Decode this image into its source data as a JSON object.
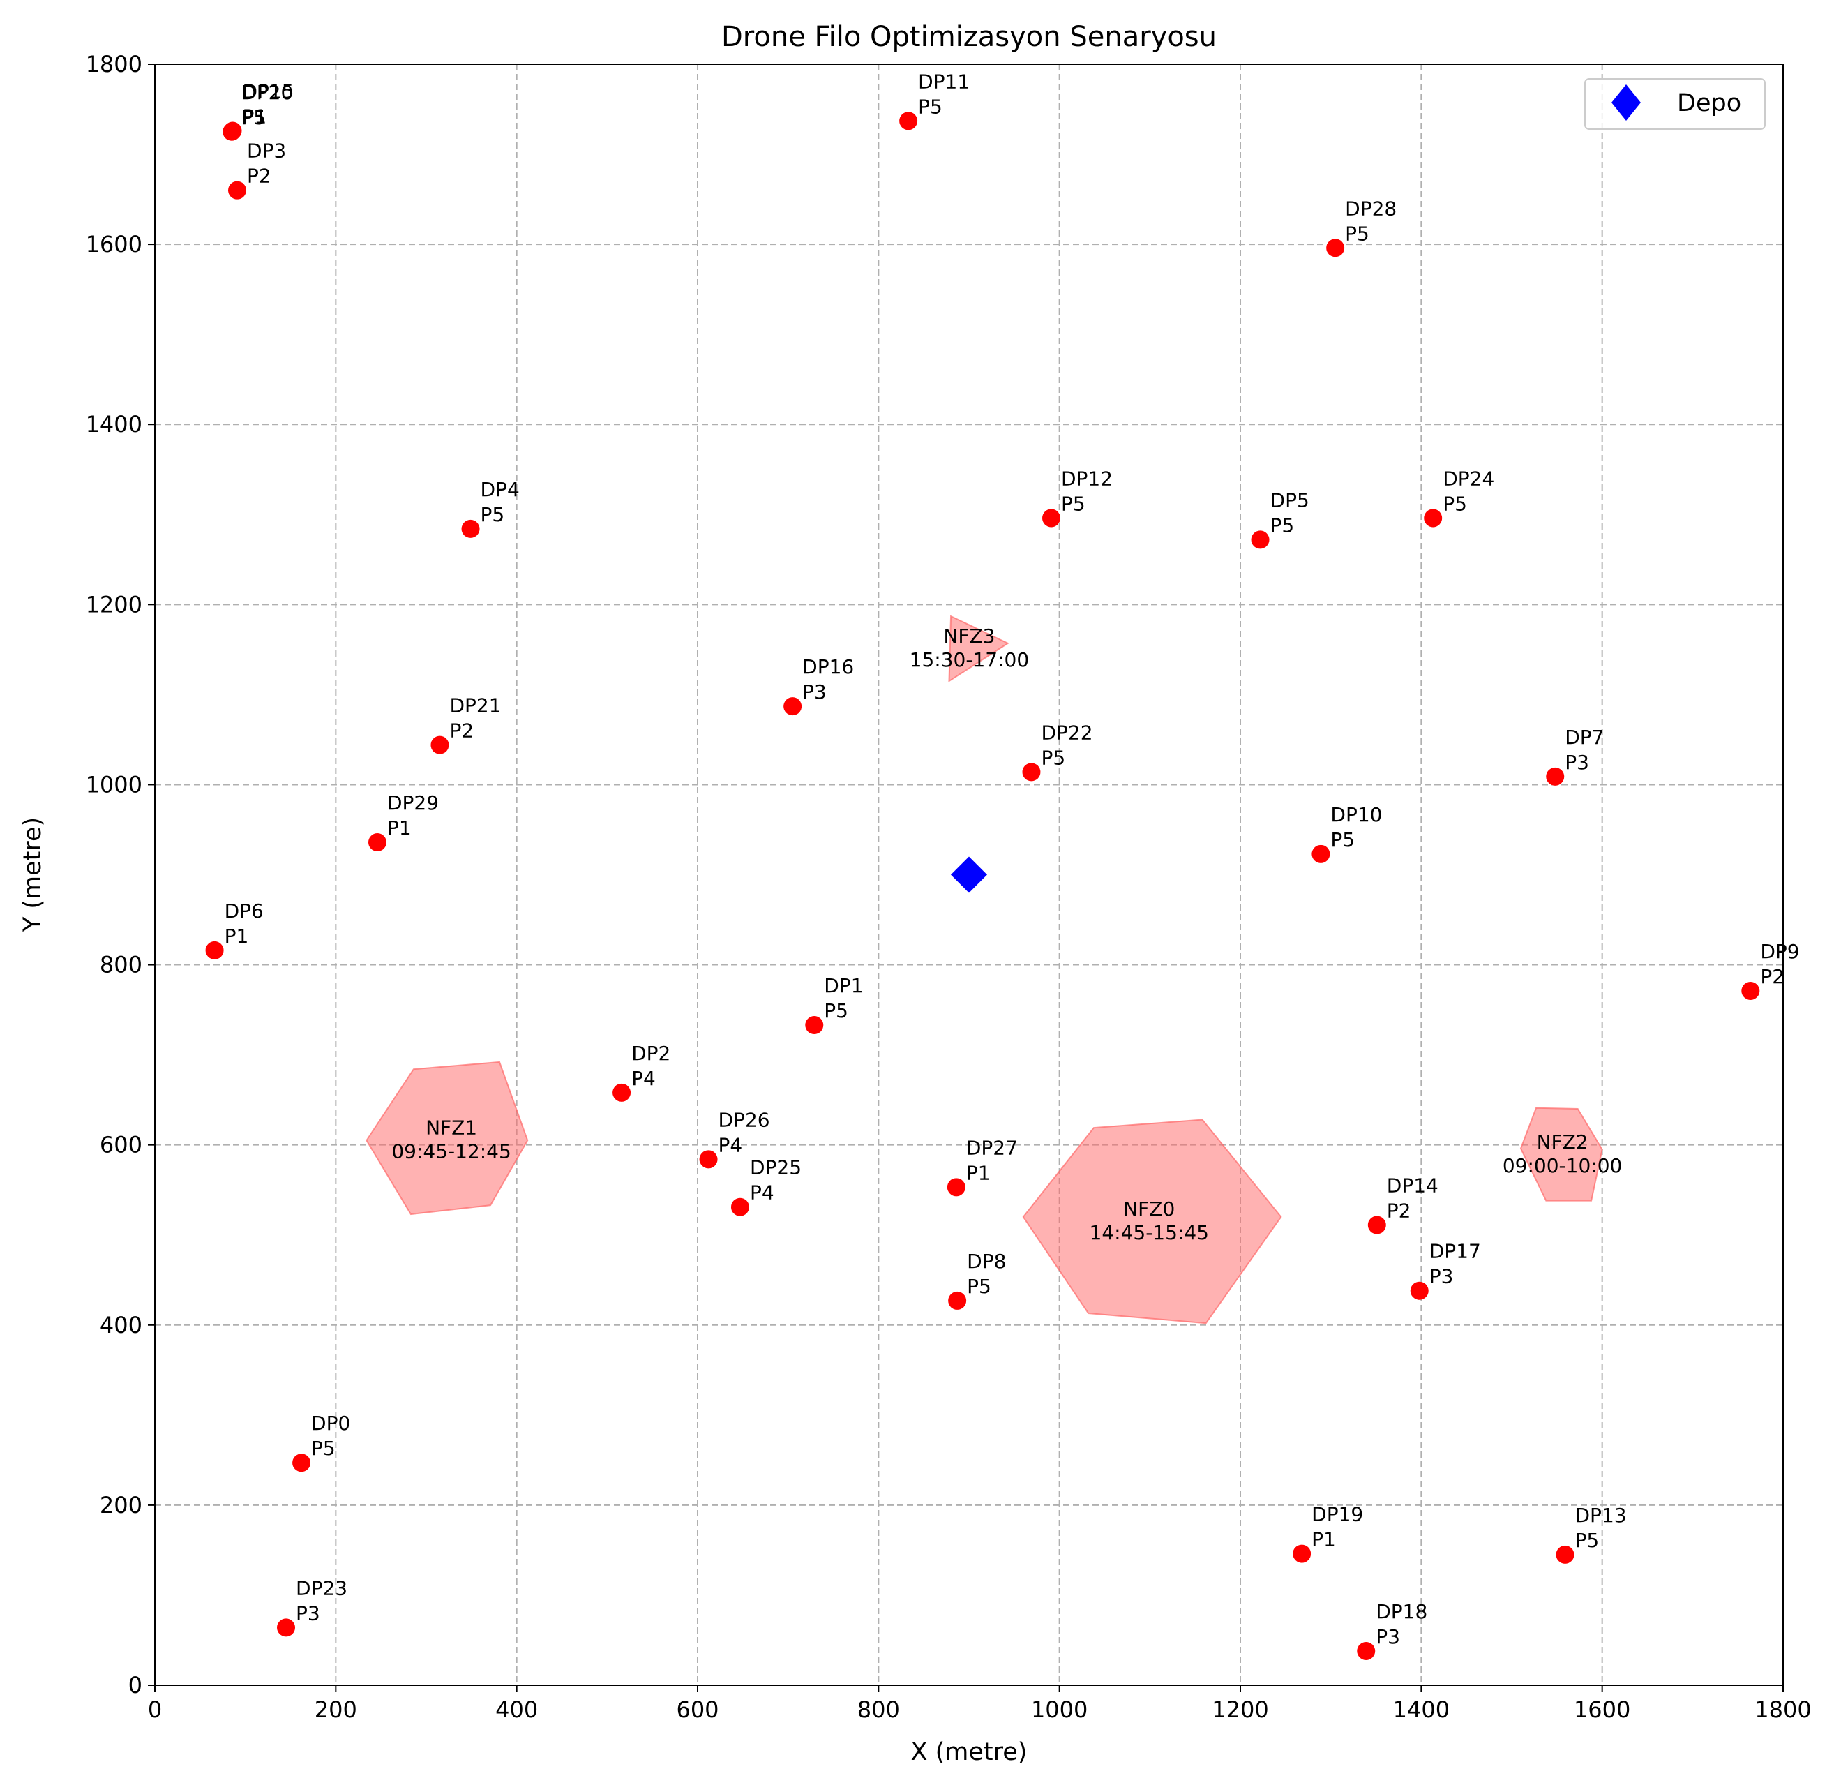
{
  "chart_data": {
    "type": "scatter",
    "title": "Drone Filo Optimizasyon Senaryosu",
    "xlabel": "X (metre)",
    "ylabel": "Y (metre)",
    "xlim": [
      0,
      1800
    ],
    "ylim": [
      0,
      1800
    ],
    "xticks": [
      0,
      200,
      400,
      600,
      800,
      1000,
      1200,
      1400,
      1600,
      1800
    ],
    "yticks": [
      0,
      200,
      400,
      600,
      800,
      1000,
      1200,
      1400,
      1600,
      1800
    ],
    "grid": true,
    "legend_position": "top-right",
    "depot": {
      "name": "Depo",
      "x": 900,
      "y": 900,
      "color": "#0000ff"
    },
    "delivery_point_color": "#ff0000",
    "nfz_color": "#ff6666",
    "delivery_points": [
      {
        "id": "DP0",
        "priority": "P5",
        "x": 162,
        "y": 247
      },
      {
        "id": "DP1",
        "priority": "P5",
        "x": 729,
        "y": 733
      },
      {
        "id": "DP2",
        "priority": "P4",
        "x": 516,
        "y": 658
      },
      {
        "id": "DP3",
        "priority": "P2",
        "x": 91,
        "y": 1660
      },
      {
        "id": "DP4",
        "priority": "P5",
        "x": 349,
        "y": 1284
      },
      {
        "id": "DP5",
        "priority": "P5",
        "x": 1222,
        "y": 1272
      },
      {
        "id": "DP6",
        "priority": "P1",
        "x": 66,
        "y": 816
      },
      {
        "id": "DP7",
        "priority": "P3",
        "x": 1548,
        "y": 1009
      },
      {
        "id": "DP8",
        "priority": "P5",
        "x": 887,
        "y": 427
      },
      {
        "id": "DP9",
        "priority": "P2",
        "x": 1764,
        "y": 771
      },
      {
        "id": "DP10",
        "priority": "P5",
        "x": 1289,
        "y": 923
      },
      {
        "id": "DP11",
        "priority": "P5",
        "x": 833,
        "y": 1737
      },
      {
        "id": "DP12",
        "priority": "P5",
        "x": 991,
        "y": 1296
      },
      {
        "id": "DP13",
        "priority": "P5",
        "x": 1559,
        "y": 145
      },
      {
        "id": "DP14",
        "priority": "P2",
        "x": 1351,
        "y": 511
      },
      {
        "id": "DP15",
        "priority": "P1",
        "x": 86,
        "y": 1726
      },
      {
        "id": "DP16",
        "priority": "P3",
        "x": 705,
        "y": 1087
      },
      {
        "id": "DP17",
        "priority": "P3",
        "x": 1398,
        "y": 438
      },
      {
        "id": "DP18",
        "priority": "P3",
        "x": 1339,
        "y": 38
      },
      {
        "id": "DP19",
        "priority": "P1",
        "x": 1268,
        "y": 146
      },
      {
        "id": "DP20",
        "priority": "P5",
        "x": 85,
        "y": 1725
      },
      {
        "id": "DP21",
        "priority": "P2",
        "x": 315,
        "y": 1044
      },
      {
        "id": "DP22",
        "priority": "P5",
        "x": 969,
        "y": 1014
      },
      {
        "id": "DP23",
        "priority": "P3",
        "x": 145,
        "y": 64
      },
      {
        "id": "DP24",
        "priority": "P5",
        "x": 1413,
        "y": 1296
      },
      {
        "id": "DP25",
        "priority": "P4",
        "x": 647,
        "y": 531
      },
      {
        "id": "DP26",
        "priority": "P4",
        "x": 612,
        "y": 584
      },
      {
        "id": "DP27",
        "priority": "P1",
        "x": 886,
        "y": 553
      },
      {
        "id": "DP28",
        "priority": "P5",
        "x": 1305,
        "y": 1596
      },
      {
        "id": "DP29",
        "priority": "P1",
        "x": 246,
        "y": 936
      }
    ],
    "no_fly_zones": [
      {
        "id": "NFZ0",
        "window": "14:45-15:45",
        "polygon": [
          [
            1038,
            619
          ],
          [
            1158,
            628
          ],
          [
            1245,
            520
          ],
          [
            1162,
            402
          ],
          [
            1032,
            413
          ],
          [
            960,
            520
          ]
        ]
      },
      {
        "id": "NFZ1",
        "window": "09:45-12:45",
        "polygon": [
          [
            286,
            684
          ],
          [
            381,
            692
          ],
          [
            412,
            605
          ],
          [
            371,
            533
          ],
          [
            283,
            523
          ],
          [
            234,
            605
          ]
        ]
      },
      {
        "id": "NFZ2",
        "window": "09:00-10:00",
        "polygon": [
          [
            1527,
            641
          ],
          [
            1573,
            640
          ],
          [
            1600,
            595
          ],
          [
            1588,
            538
          ],
          [
            1538,
            538
          ],
          [
            1510,
            596
          ]
        ]
      },
      {
        "id": "NFZ3",
        "window": "15:30-17:00",
        "polygon": [
          [
            880,
            1187
          ],
          [
            943,
            1157
          ],
          [
            878,
            1115
          ]
        ]
      }
    ]
  }
}
